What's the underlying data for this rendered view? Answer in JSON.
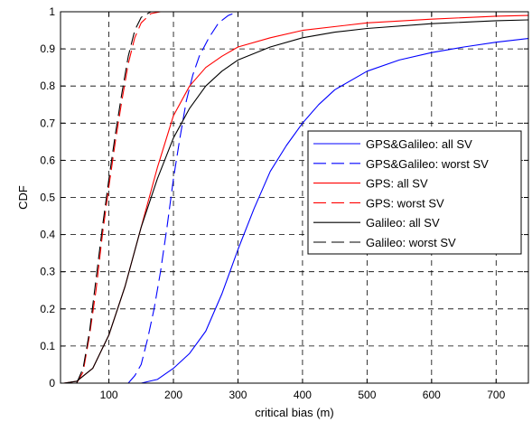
{
  "chart_data": {
    "type": "line",
    "title": "",
    "xlabel": "critical bias (m)",
    "ylabel": "CDF",
    "xlim": [
      25,
      750
    ],
    "ylim": [
      0,
      1
    ],
    "xticks": [
      100,
      200,
      300,
      400,
      500,
      600,
      700
    ],
    "yticks": [
      0,
      0.1,
      0.2,
      0.3,
      0.4,
      0.5,
      0.6,
      0.7,
      0.8,
      0.9,
      1
    ],
    "xtick_labels": [
      "100",
      "200",
      "300",
      "400",
      "500",
      "600",
      "700"
    ],
    "ytick_labels": [
      "0",
      "0.1",
      "0.2",
      "0.3",
      "0.4",
      "0.5",
      "0.6",
      "0.7",
      "0.8",
      "0.9",
      "1"
    ],
    "grid": true,
    "legend_position": "right",
    "series": [
      {
        "name": "GPS&Galileo: all SV",
        "color": "#0000ff",
        "style": "solid",
        "points": [
          [
            150,
            0
          ],
          [
            175,
            0.01
          ],
          [
            200,
            0.04
          ],
          [
            225,
            0.08
          ],
          [
            250,
            0.14
          ],
          [
            275,
            0.24
          ],
          [
            300,
            0.36
          ],
          [
            325,
            0.47
          ],
          [
            350,
            0.57
          ],
          [
            375,
            0.64
          ],
          [
            400,
            0.7
          ],
          [
            425,
            0.75
          ],
          [
            450,
            0.79
          ],
          [
            500,
            0.84
          ],
          [
            550,
            0.87
          ],
          [
            600,
            0.89
          ],
          [
            650,
            0.905
          ],
          [
            700,
            0.918
          ],
          [
            750,
            0.928
          ]
        ]
      },
      {
        "name": "GPS&Galileo: worst SV",
        "color": "#0000ff",
        "style": "dashed",
        "points": [
          [
            130,
            0
          ],
          [
            140,
            0.02
          ],
          [
            150,
            0.05
          ],
          [
            160,
            0.12
          ],
          [
            170,
            0.2
          ],
          [
            180,
            0.3
          ],
          [
            190,
            0.42
          ],
          [
            200,
            0.55
          ],
          [
            210,
            0.66
          ],
          [
            220,
            0.76
          ],
          [
            230,
            0.83
          ],
          [
            240,
            0.88
          ],
          [
            255,
            0.93
          ],
          [
            270,
            0.97
          ],
          [
            285,
            0.99
          ],
          [
            300,
            1.0
          ],
          [
            750,
            1.0
          ]
        ]
      },
      {
        "name": "GPS: all SV",
        "color": "#ff0000",
        "style": "solid",
        "points": [
          [
            30,
            0
          ],
          [
            50,
            0.005
          ],
          [
            75,
            0.04
          ],
          [
            100,
            0.13
          ],
          [
            125,
            0.26
          ],
          [
            150,
            0.42
          ],
          [
            175,
            0.58
          ],
          [
            200,
            0.72
          ],
          [
            225,
            0.8
          ],
          [
            250,
            0.85
          ],
          [
            275,
            0.88
          ],
          [
            300,
            0.905
          ],
          [
            350,
            0.93
          ],
          [
            400,
            0.95
          ],
          [
            500,
            0.97
          ],
          [
            600,
            0.98
          ],
          [
            700,
            0.988
          ],
          [
            750,
            0.99
          ]
        ]
      },
      {
        "name": "GPS: worst SV",
        "color": "#ff0000",
        "style": "dashed",
        "points": [
          [
            50,
            0
          ],
          [
            60,
            0.03
          ],
          [
            70,
            0.13
          ],
          [
            80,
            0.25
          ],
          [
            90,
            0.4
          ],
          [
            100,
            0.53
          ],
          [
            110,
            0.65
          ],
          [
            120,
            0.76
          ],
          [
            130,
            0.86
          ],
          [
            140,
            0.93
          ],
          [
            150,
            0.97
          ],
          [
            165,
            0.995
          ],
          [
            180,
            1.0
          ],
          [
            750,
            1.0
          ]
        ]
      },
      {
        "name": "Galileo: all SV",
        "color": "#000000",
        "style": "solid",
        "points": [
          [
            30,
            0
          ],
          [
            50,
            0.005
          ],
          [
            75,
            0.04
          ],
          [
            100,
            0.13
          ],
          [
            125,
            0.26
          ],
          [
            150,
            0.42
          ],
          [
            175,
            0.55
          ],
          [
            200,
            0.66
          ],
          [
            225,
            0.74
          ],
          [
            250,
            0.8
          ],
          [
            275,
            0.84
          ],
          [
            300,
            0.87
          ],
          [
            350,
            0.905
          ],
          [
            400,
            0.93
          ],
          [
            450,
            0.945
          ],
          [
            500,
            0.955
          ],
          [
            600,
            0.968
          ],
          [
            700,
            0.976
          ],
          [
            750,
            0.978
          ]
        ]
      },
      {
        "name": "Galileo: worst SV",
        "color": "#000000",
        "style": "dashed",
        "points": [
          [
            50,
            0
          ],
          [
            60,
            0.04
          ],
          [
            70,
            0.14
          ],
          [
            80,
            0.28
          ],
          [
            90,
            0.42
          ],
          [
            100,
            0.55
          ],
          [
            110,
            0.67
          ],
          [
            120,
            0.78
          ],
          [
            130,
            0.88
          ],
          [
            140,
            0.95
          ],
          [
            150,
            0.985
          ],
          [
            165,
            1.0
          ],
          [
            750,
            1.0
          ]
        ]
      }
    ]
  }
}
